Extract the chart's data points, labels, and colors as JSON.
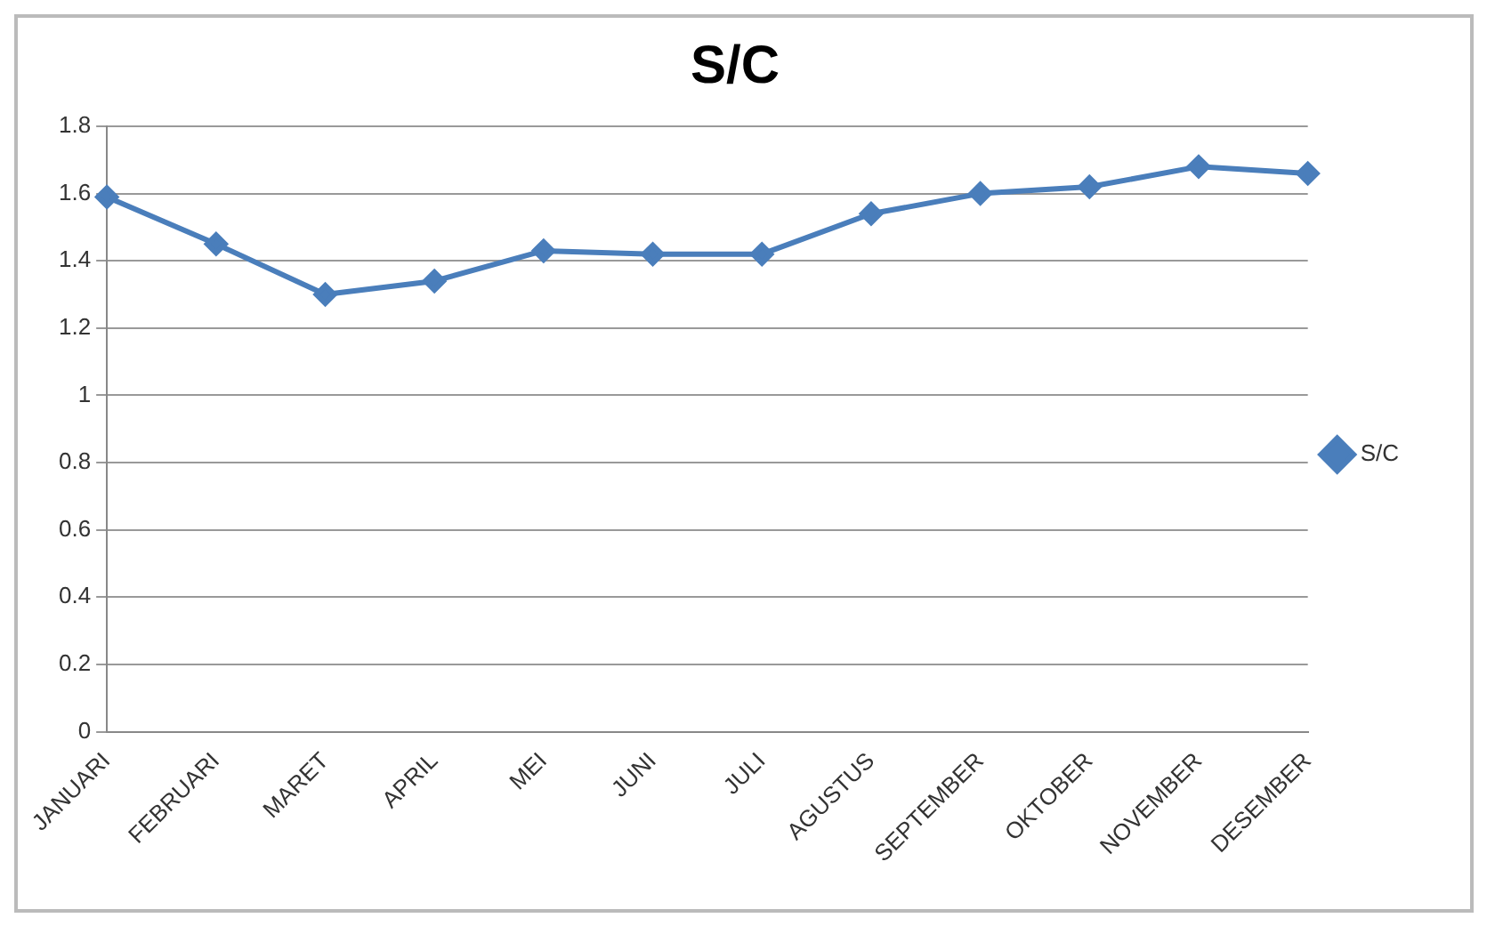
{
  "chart_data": {
    "type": "line",
    "title": "S/C",
    "categories": [
      "JANUARI",
      "FEBRUARI",
      "MARET",
      "APRIL",
      "MEI",
      "JUNI",
      "JULI",
      "AGUSTUS",
      "SEPTEMBER",
      "OKTOBER",
      "NOVEMBER",
      "DESEMBER"
    ],
    "series": [
      {
        "name": "S/C",
        "color": "#4a7ebb",
        "values": [
          1.59,
          1.45,
          1.3,
          1.34,
          1.43,
          1.42,
          1.42,
          1.54,
          1.6,
          1.62,
          1.68,
          1.66
        ]
      }
    ],
    "ylim": [
      0,
      1.8
    ],
    "yticks": [
      0,
      0.2,
      0.4,
      0.6,
      0.8,
      1,
      1.2,
      1.4,
      1.6,
      1.8
    ],
    "grid": "y",
    "legend": "right",
    "marker": "diamond",
    "line_style": "solid"
  }
}
